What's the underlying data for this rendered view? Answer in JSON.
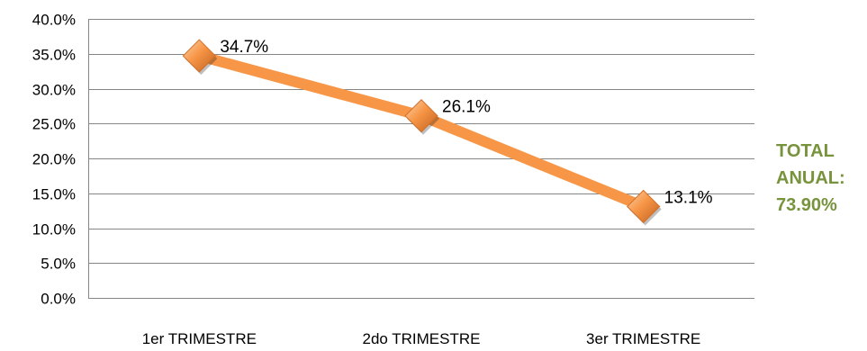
{
  "chart_data": {
    "type": "line",
    "categories": [
      "1er TRIMESTRE",
      "2do TRIMESTRE",
      "3er TRIMESTRE"
    ],
    "series": [
      {
        "values": [
          34.7,
          26.1,
          13.1
        ],
        "labels": [
          "34.7%",
          "26.1%",
          "13.1%"
        ],
        "color": "#f79646"
      }
    ],
    "yticks": [
      "0.0%",
      "5.0%",
      "10.0%",
      "15.0%",
      "20.0%",
      "25.0%",
      "30.0%",
      "35.0%",
      "40.0%"
    ],
    "ylim": [
      0,
      40
    ],
    "ystep": 5,
    "grid": true,
    "legend": "none"
  },
  "annotation": {
    "line1": "TOTAL",
    "line2": "ANUAL:",
    "line3": "73.90%",
    "color": "#77933c"
  }
}
